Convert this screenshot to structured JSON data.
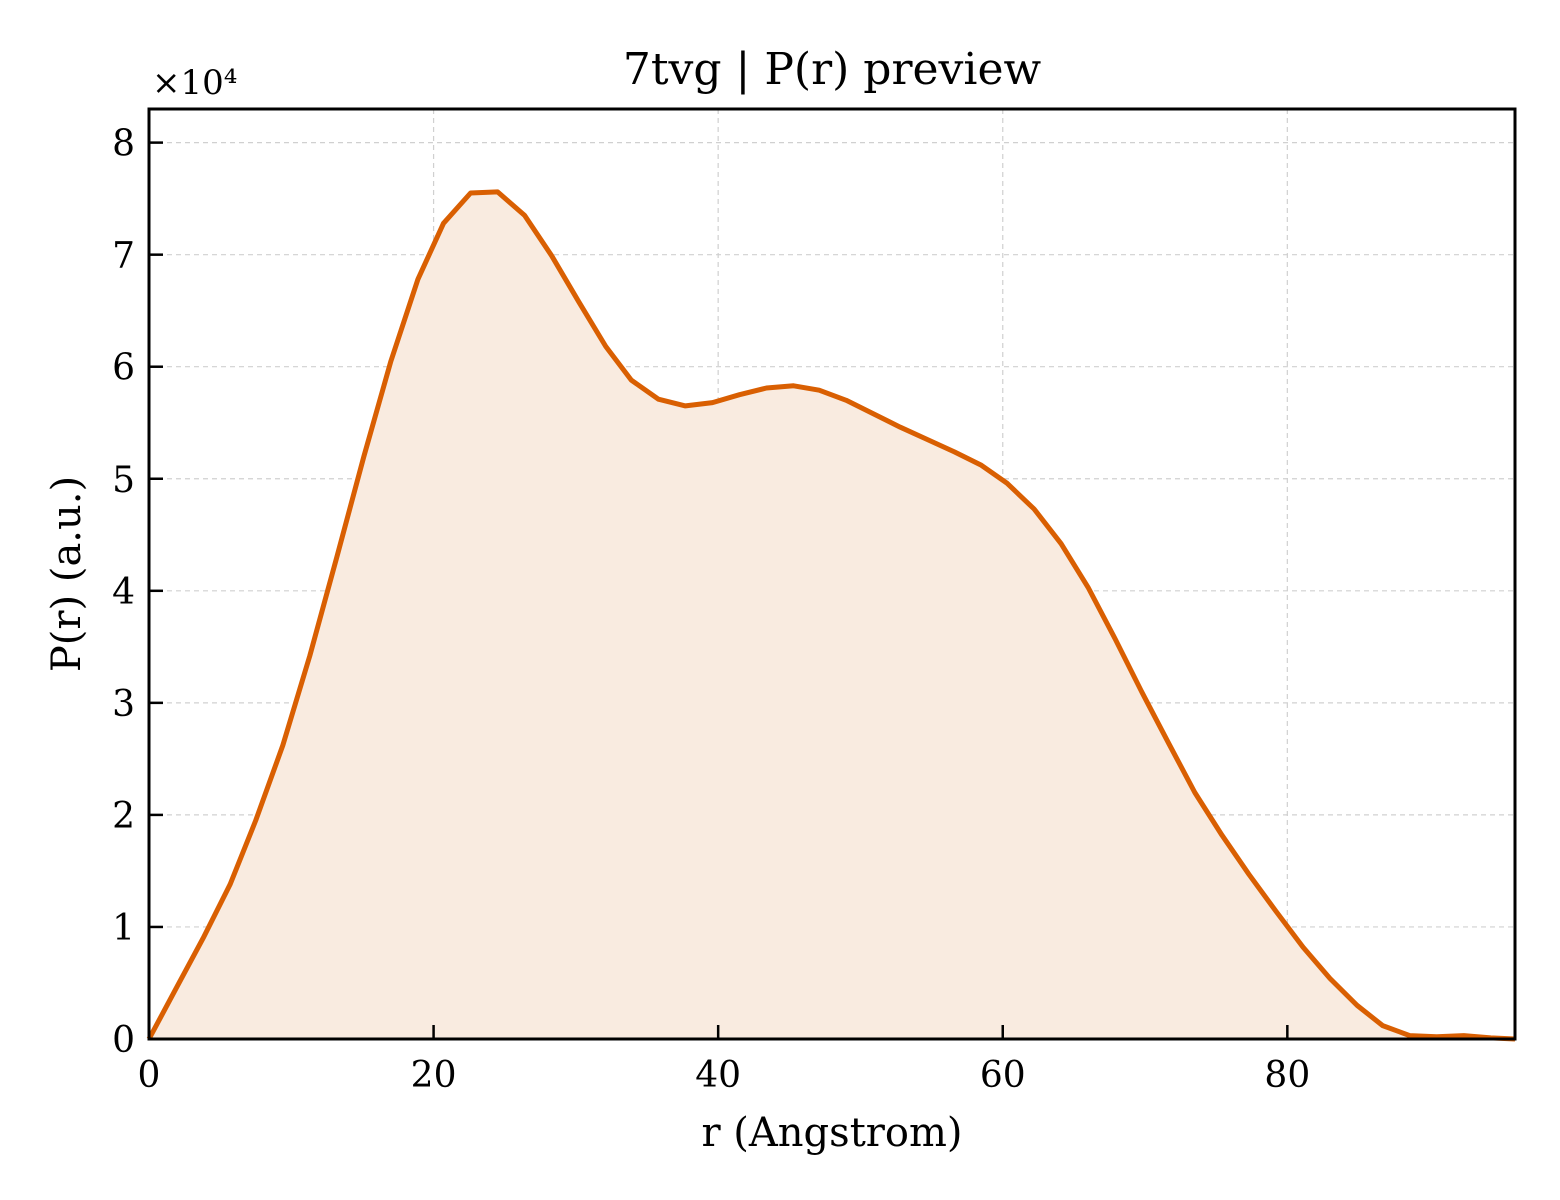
{
  "chart_data": {
    "type": "area",
    "title": "7tvg | P(r) preview",
    "xlabel": "r (Angstrom)",
    "ylabel": "P(r) (a.u.)",
    "y_multiplier": "×10⁴",
    "xlim": [
      0,
      96
    ],
    "ylim": [
      0,
      8.3
    ],
    "x_ticks": [
      0,
      20,
      40,
      60,
      80
    ],
    "y_ticks": [
      0,
      1,
      2,
      3,
      4,
      5,
      6,
      7,
      8
    ],
    "grid": true,
    "line_color": "#d95f02",
    "fill_color": "#f9ebe0",
    "series": [
      {
        "x": [
          0,
          1.9,
          3.8,
          5.7,
          7.5,
          9.4,
          11.3,
          13.2,
          15.1,
          17.0,
          18.9,
          20.7,
          22.6,
          24.5,
          26.4,
          28.3,
          30.2,
          32.1,
          33.9,
          35.8,
          37.7,
          39.6,
          41.5,
          43.4,
          45.3,
          47.1,
          49.0,
          50.9,
          52.8,
          54.7,
          56.6,
          58.5,
          60.3,
          62.2,
          64.1,
          66.0,
          67.9,
          69.8,
          71.7,
          73.5,
          75.4,
          77.3,
          79.2,
          81.1,
          83.0,
          84.9,
          86.7,
          88.6,
          90.5,
          92.4,
          94.3,
          96.0
        ],
        "y": [
          0,
          0.45,
          0.9,
          1.38,
          1.95,
          2.62,
          3.42,
          4.3,
          5.2,
          6.05,
          6.78,
          7.28,
          7.55,
          7.56,
          7.35,
          6.99,
          6.58,
          6.18,
          5.88,
          5.71,
          5.65,
          5.68,
          5.75,
          5.81,
          5.83,
          5.79,
          5.7,
          5.58,
          5.46,
          5.35,
          5.24,
          5.12,
          4.96,
          4.73,
          4.42,
          4.03,
          3.57,
          3.09,
          2.63,
          2.2,
          1.82,
          1.47,
          1.14,
          0.82,
          0.54,
          0.3,
          0.12,
          0.03,
          0.02,
          0.03,
          0.01,
          0.0
        ]
      }
    ]
  }
}
